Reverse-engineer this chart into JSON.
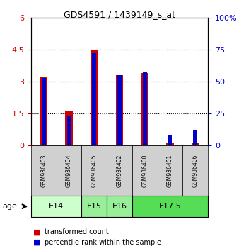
{
  "title": "GDS4591 / 1439149_s_at",
  "samples": [
    "GSM936403",
    "GSM936404",
    "GSM936405",
    "GSM936402",
    "GSM936400",
    "GSM936401",
    "GSM936406"
  ],
  "transformed_count": [
    3.2,
    1.6,
    4.5,
    3.3,
    3.4,
    0.15,
    0.1
  ],
  "percentile_rank": [
    53,
    23,
    72,
    55,
    57,
    8,
    12
  ],
  "age_groups": [
    {
      "label": "E14",
      "samples": [
        0,
        1
      ],
      "color": "#ccffcc"
    },
    {
      "label": "E15",
      "samples": [
        2
      ],
      "color": "#99ee99"
    },
    {
      "label": "E16",
      "samples": [
        3
      ],
      "color": "#99ee99"
    },
    {
      "label": "E17.5",
      "samples": [
        4,
        5,
        6
      ],
      "color": "#55dd55"
    }
  ],
  "ylim_left": [
    0,
    6
  ],
  "ylim_right": [
    0,
    100
  ],
  "yticks_left": [
    0,
    1.5,
    3.0,
    4.5,
    6.0
  ],
  "yticks_right": [
    0,
    25,
    50,
    75,
    100
  ],
  "red_color": "#cc0000",
  "blue_color": "#0000cc",
  "legend_items": [
    "transformed count",
    "percentile rank within the sample"
  ]
}
